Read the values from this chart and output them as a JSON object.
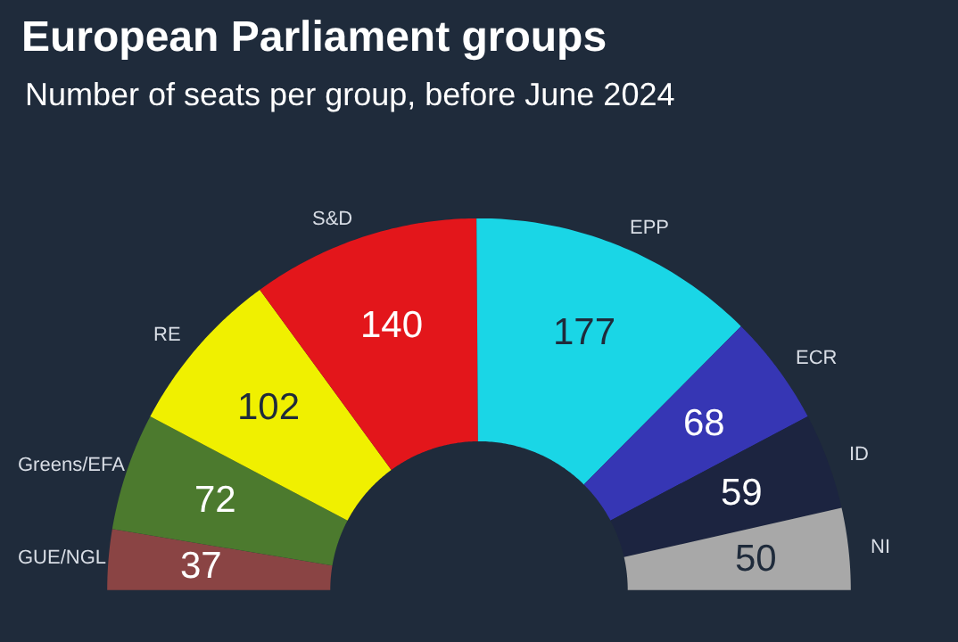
{
  "chart_data": {
    "type": "donut",
    "title": "European Parliament groups",
    "subtitle": "Number of seats per group, before June 2024",
    "categories": [
      "GUE/NGL",
      "Greens/EFA",
      "RE",
      "S&D",
      "EPP",
      "ECR",
      "ID",
      "NI"
    ],
    "values": [
      37,
      72,
      102,
      140,
      177,
      68,
      59,
      50
    ],
    "colors": [
      "#8a4444",
      "#4c7a2e",
      "#f0f000",
      "#e3161b",
      "#1ad6e6",
      "#3636b4",
      "#1c2440",
      "#a8a8a8"
    ],
    "data_labels": true
  }
}
